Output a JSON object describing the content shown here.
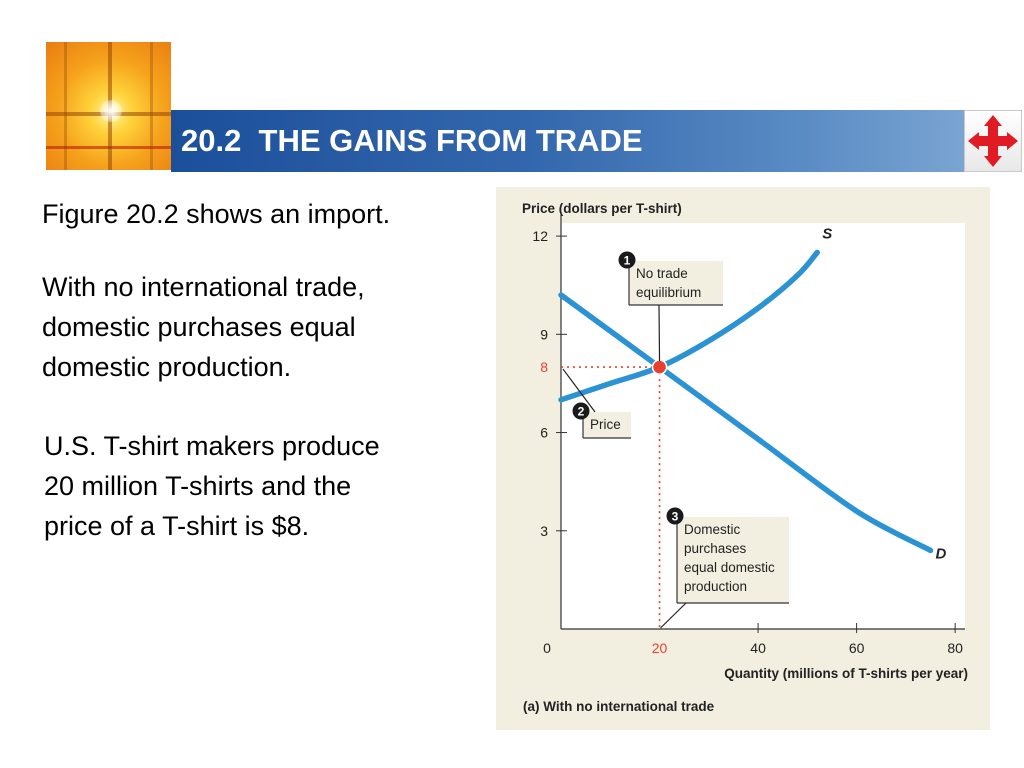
{
  "slide": {
    "title": "20.2  THE GAINS FROM TRADE",
    "paragraphs": [
      "Figure 20.2 shows an import.",
      "With no international trade, domestic purchases equal domestic production.",
      "U.S. T-shirt makers produce 20 million T-shirts and the price of a T-shirt is $8."
    ],
    "paragraph_lines": [
      [
        "Figure 20.2 shows an import."
      ],
      [
        "With no international trade,",
        "domestic purchases equal",
        "domestic production."
      ],
      [
        "U.S. T-shirt makers produce",
        "20 million T-shirts and the",
        "price of a T-shirt is $8."
      ]
    ],
    "colors": {
      "title_bar": "#2a5ea8",
      "chart_bg": "#f2efe1",
      "curve": "#2b93d3",
      "highlight": "#e8402f",
      "nav_icon": "#e01b24"
    },
    "icons": {
      "logo": "cross-logo",
      "nav": "four-way-arrows-icon"
    }
  },
  "chart_data": {
    "type": "line",
    "ylabel": "Price (dollars per T-shirt)",
    "xlabel": "Quantity (millions of T-shirts per year)",
    "caption": "(a) With no international trade",
    "xlim": [
      0,
      82
    ],
    "ylim": [
      0,
      12.4
    ],
    "x_ticks": [
      "0",
      "20",
      "40",
      "60",
      "80"
    ],
    "x_tick_values": [
      0,
      20,
      40,
      60,
      80
    ],
    "y_ticks": [
      "3",
      "6",
      "8",
      "9",
      "12"
    ],
    "y_tick_values": [
      3,
      6,
      8,
      9,
      12
    ],
    "highlight_ticks": [
      "8",
      "20"
    ],
    "series": [
      {
        "name": "S",
        "x": [
          0,
          10,
          20,
          30,
          40,
          48,
          52
        ],
        "y": [
          7.0,
          7.5,
          8.0,
          8.8,
          9.8,
          10.8,
          11.5
        ]
      },
      {
        "name": "D",
        "x": [
          0,
          20,
          40,
          60,
          75
        ],
        "y": [
          10.2,
          8.0,
          5.8,
          3.6,
          2.4
        ]
      }
    ],
    "equilibrium": {
      "x": 20,
      "y": 8
    },
    "annotations": [
      {
        "number": "1",
        "lines": [
          "No trade",
          "equilibrium"
        ]
      },
      {
        "number": "2",
        "lines": [
          "Price"
        ]
      },
      {
        "number": "3",
        "lines": [
          "Domestic",
          "purchases",
          "equal domestic",
          "production"
        ]
      }
    ]
  }
}
